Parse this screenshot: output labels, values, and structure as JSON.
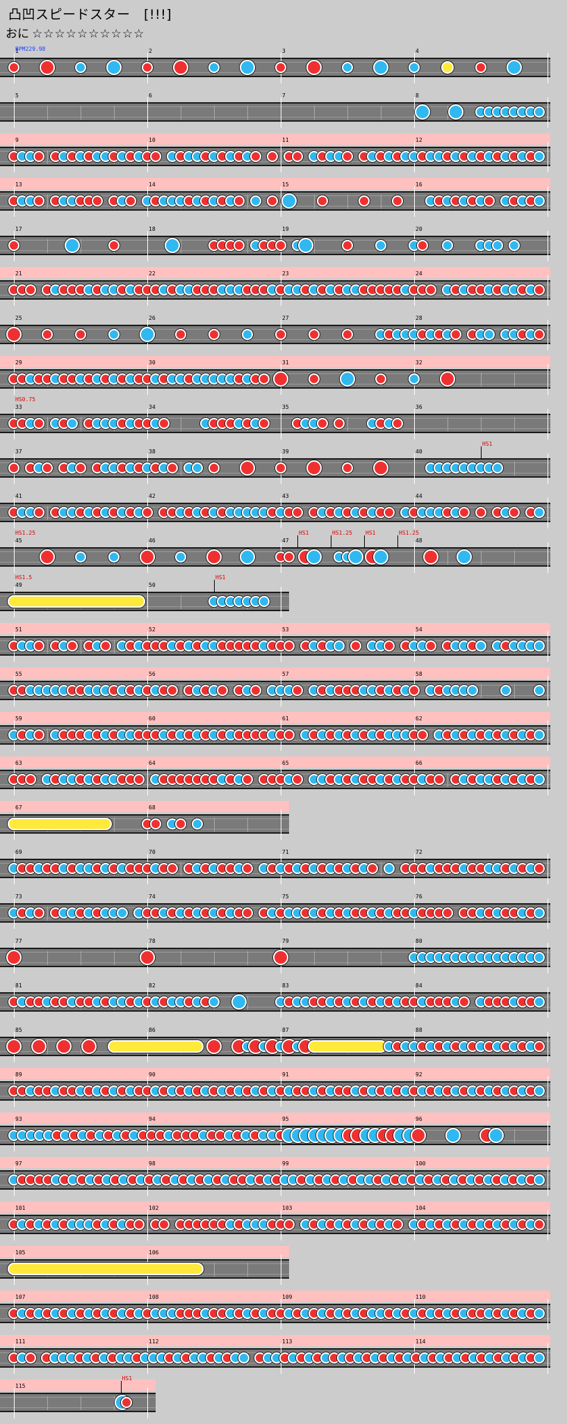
{
  "header": {
    "title": "凸凹スピードスター　[!!!]",
    "difficulty": "おに",
    "stars": "☆☆☆☆☆☆☆☆☆☆"
  },
  "chart_info": {
    "bpm_label": "BPM229.98",
    "colors": {
      "don": "#f03030",
      "ka": "#30b8f0",
      "roll": "#ffe93a",
      "lane": "#7a7a7a",
      "gogo": "#ffc0c0"
    }
  },
  "rows": [
    {
      "bars": [
        1,
        2,
        3,
        4
      ],
      "gogo": false,
      "pattern": "d000D000k000K000d000D000k000K000d000D000k000K000k000R000d000K000"
    },
    {
      "bars": [
        5,
        6,
        7,
        8
      ],
      "gogo": false,
      "pattern": "0000000000000000000000000000000000000000000000000K000K00kkkkkkkk"
    },
    {
      "bars": [
        9,
        10,
        11,
        12
      ],
      "gogo": true,
      "pattern": "dkkd0dkdkdkkdkdkdd0kdkkdkdkdkd0d0dd0kdkkd0dkdkdkkdkkdkdkdkdkdkdk"
    },
    {
      "bars": [
        13,
        14,
        15,
        16
      ],
      "gogo": true,
      "pattern": "dkkd0dkkddd0dkd0kdkkkdkdkdkd0k0d0K000d0000d000d000kdkdkdkd0kdkdk"
    },
    {
      "bars": [
        17,
        18,
        19,
        20
      ],
      "gogo": false,
      "pattern": "d000000K0000d000000K0000dddd0kddd0kK0000d000k000kd00k000kkk0k000"
    },
    {
      "bars": [
        21,
        22,
        23,
        24
      ],
      "gogo": true,
      "pattern": "ddd0dkdddkdkkdkdddkdkkdddkkkdddkdkkdkdkdkkdddddkddd0kdkddkdkkdkd"
    },
    {
      "bars": [
        25,
        26,
        27,
        28
      ],
      "gogo": false,
      "pattern": "D000d000d000k000K000d000d000k000d000d000d000kdkkkdkdkd0dkk0kkdkd"
    },
    {
      "bars": [
        29,
        30,
        31,
        32
      ],
      "gogo": true,
      "pattern": "ddkddkddkdkdkdkddkdkkdkkkkkdkdd0D000d000K000d000k000D00000000000"
    },
    {
      "bars": [
        33,
        34,
        35,
        36
      ],
      "gogo": false,
      "annots": [
        {
          "text": "HS0.75",
          "bar": 0,
          "frac": 0
        }
      ],
      "pattern": "ddkd0kdk0dkkkdkddkd0000kdddkdkd000dkkd0d000kdkd00000000000000000"
    },
    {
      "bars": [
        37,
        38,
        39,
        40
      ],
      "gogo": false,
      "annots": [
        {
          "text": "HS1",
          "bar": 3,
          "frac": 0.5,
          "marker": true
        }
      ],
      "pattern": "d0dkd0dkd0dkkdkdkdkd0kk0d000D000d000D000d000D00000kkkkkkkkk00000"
    },
    {
      "bars": [
        41,
        42,
        43,
        44
      ],
      "gogo": false,
      "pattern": "dkkd0dkkdkdkdkdkd0ddkdkdkdkkkkkdkdd0dkdkdkdkdd0kdkkkdkd0d0dkd0dk"
    },
    {
      "bars": [
        45,
        46,
        47,
        48
      ],
      "gogo": false,
      "annots": [
        {
          "text": "HS1.25",
          "bar": 0,
          "frac": 0
        },
        {
          "text": "HS1",
          "bar": 2,
          "frac": 0.125,
          "marker": true
        },
        {
          "text": "HS1.25",
          "bar": 2,
          "frac": 0.375,
          "marker": true
        },
        {
          "text": "HS1",
          "bar": 2,
          "frac": 0.625,
          "marker": true
        },
        {
          "text": "HS1.25",
          "bar": 2,
          "frac": 0.875,
          "marker": true
        }
      ],
      "pattern": "0000D000k000k000D000k000D000K000dd0DK00kkK0DK00000D000K000000000"
    },
    {
      "bars": [
        49,
        50
      ],
      "gogo": false,
      "annots": [
        {
          "text": "HS1.5",
          "bar": 0,
          "frac": 0
        },
        {
          "text": "HS1",
          "bar": 1,
          "frac": 0.5,
          "marker": true
        }
      ],
      "pattern": "RRRRRRRRRRRRRRRR00000000kkkkkkk0"
    },
    {
      "bars": [
        51,
        52,
        53,
        54
      ],
      "gogo": true,
      "pattern": "dkkd0dkd0dkd0kdkdddkdkdkkdddddkddd0dkdkk0d0kkd0dkkd0dkkdk0kdkkkk"
    },
    {
      "bars": [
        55,
        56,
        57,
        58
      ],
      "gogo": true,
      "pattern": "ddkkkkkddkkkdkdkdkdd0dkdkd0dkd0kkkd0kdkdddkkdkdkd0kdkkkk000k000k"
    },
    {
      "bars": [
        59,
        60,
        61,
        62
      ],
      "gogo": true,
      "pattern": "kdkd0kdddkdkdkkdddkdkdkdkdkddddkdd0kdkdkdkdkdkkkdd0kdkdkdkdkdkdk"
    },
    {
      "bars": [
        63,
        64,
        65,
        66
      ],
      "gogo": true,
      "pattern": "ddd0kdkkdkdkkddd0kdddddddkdkd0dddkd0kkdkdkddkdkddkdd0dkdkkdkdkdk"
    },
    {
      "bars": [
        67,
        68
      ],
      "gogo": true,
      "pattern": "RRRRRRRRRRRR0000dd0kd0k000000000"
    },
    {
      "bars": [
        69,
        70,
        71,
        72
      ],
      "gogo": false,
      "pattern": "kddkddkdkkdkdkdddkdd0dkdkddkd0kdkdkdkdkdkdkd0k0dddkdddkddkkdkdkd"
    },
    {
      "bars": [
        73,
        74,
        75,
        76
      ],
      "gogo": false,
      "pattern": "kdkd0dkkdkdkkk0kddkdkdkdkdkdd0dkdkkdkdkdkddkdkddkdddd0ddkdkddkdk"
    },
    {
      "bars": [
        77,
        78,
        79,
        80
      ],
      "gogo": false,
      "pattern": "D000000000000000D000000000000000D000000000000000kkkkkkkkkkkkkkkk"
    },
    {
      "bars": [
        81,
        82,
        83,
        84
      ],
      "gogo": false,
      "pattern": "dkddkddkddkdkkdkdkdkkdkdk00K0000kdkkddkdkdkdkdkddkdddkd0kdddkddk"
    },
    {
      "bars": [
        85,
        86,
        87,
        88
      ],
      "gogo": false,
      "pattern": "D00D00D00D00RRRRRRRRRRR0D00DkDkDkDkDRRRRRRRRRkdkkdkdkdkdkdkdkdkd"
    },
    {
      "bars": [
        89,
        90,
        91,
        92
      ],
      "gogo": true,
      "pattern": "ddkddkddkdkdkdkddkdkdkdkdkdkdkdkdkddkdkddkdkdkdkdkdkdkdkdkdkdkdk"
    },
    {
      "bars": [
        93,
        94,
        95,
        96
      ],
      "gogo": true,
      "pattern": "kkkkkdkdkdkdkdkdddkdddkddkdkdkkdKKKKKKKDDKKDDKKD000K000DK00000"
    },
    {
      "bars": [
        97,
        98,
        99,
        100
      ],
      "gogo": true,
      "pattern": "kddddkdkdkdkdkdkdkdkdkdkdkddkdkdkkdkdkdkdkkdkdkdkdkdkdkdkdkdkdk"
    },
    {
      "bars": [
        101,
        102,
        103,
        104
      ],
      "gogo": true,
      "pattern": "dkdkdkdkkkdkdkdd0dd0ddddddkdkkkddd0kdkdkdkdkdkd0kdkdkdkdkdkdkdkd"
    },
    {
      "bars": [
        105,
        106
      ],
      "gogo": true,
      "pattern": "RRRRRRRRRRRRRRRRRRRRRRR000000000"
    },
    {
      "bars": [
        107,
        108,
        109,
        110
      ],
      "gogo": true,
      "pattern": "dkdkdkdkdkdkdkdkdkkkdddkddkdkdkddkdkdkdkdkdkkdkdkdkdkdkddkdkdkdk"
    },
    {
      "bars": [
        111,
        112,
        113,
        114
      ],
      "gogo": true,
      "pattern": "dkd0dkkkdkdkdkkdkkkdkdkkdkdkk0dkkdkdkdkdkdkdkdkdkdkdkdkdkdkdkdkdk"
    },
    {
      "bars": [
        115
      ],
      "gogo": true,
      "annots": [
        {
          "text": "HS1",
          "bar": 0,
          "frac": 0.8,
          "marker": true
        }
      ],
      "pattern": "00000000000000000000000000Kd0000"
    }
  ]
}
